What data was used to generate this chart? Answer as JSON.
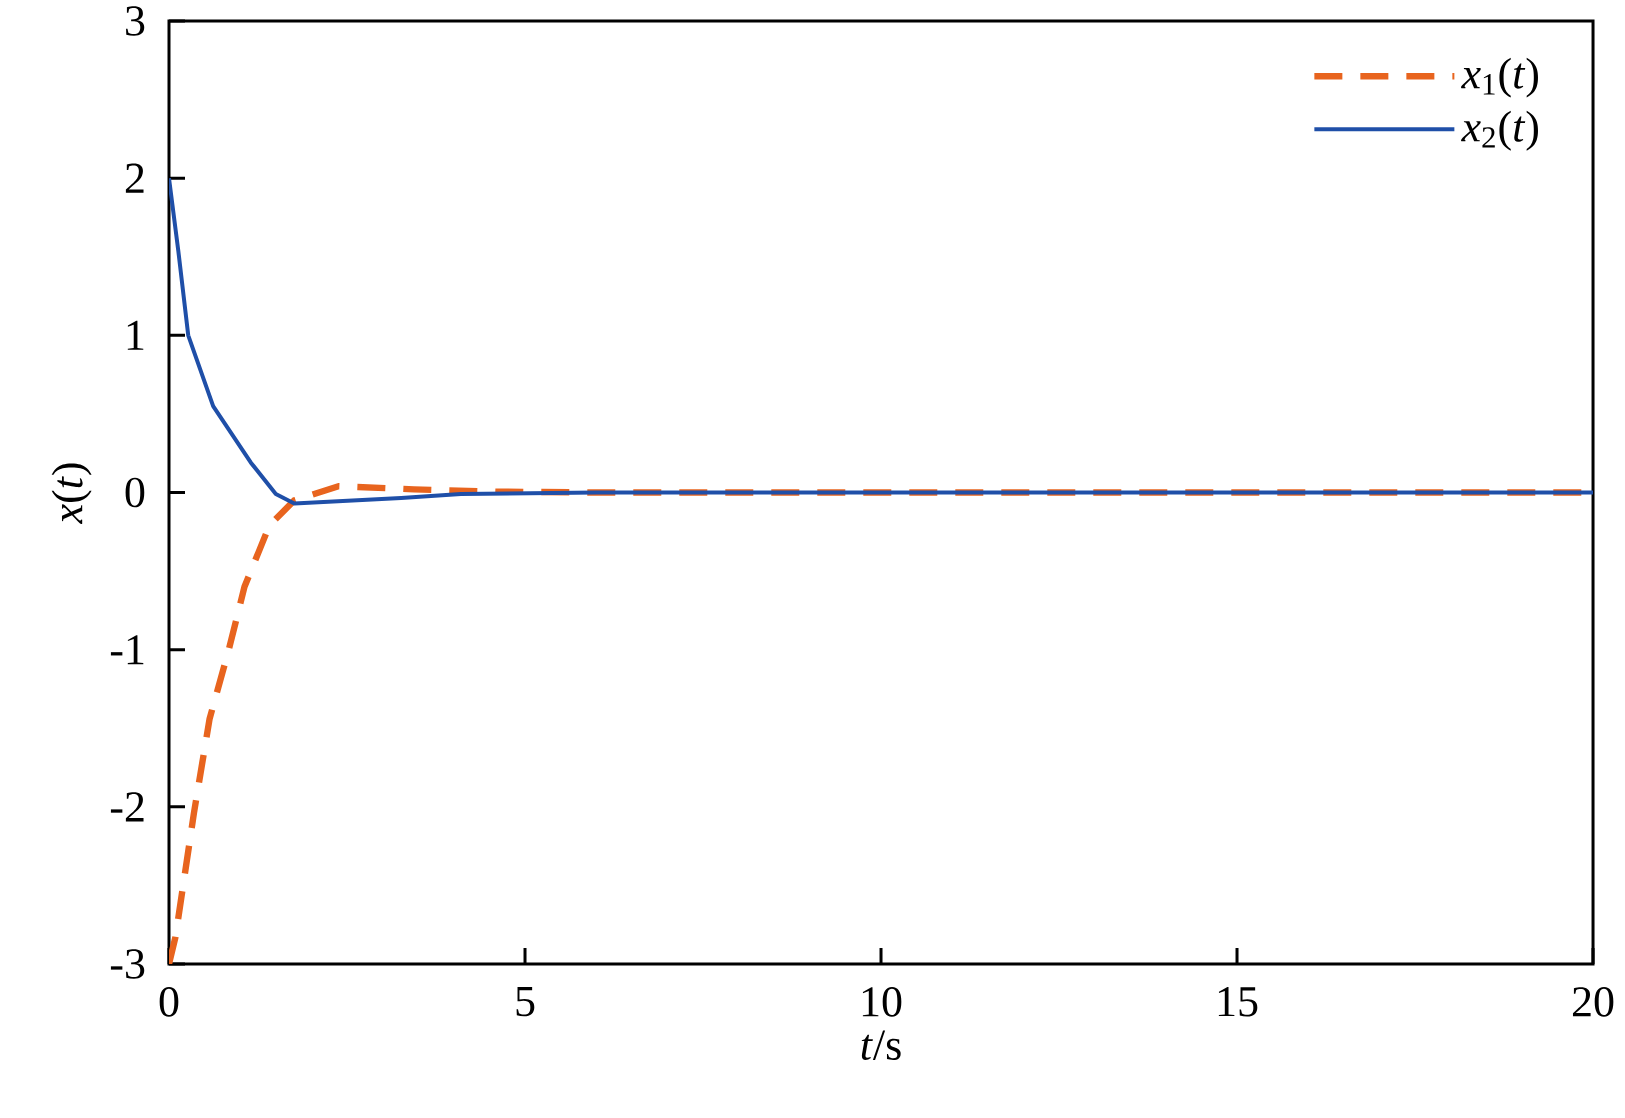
{
  "chart_data": {
    "type": "line",
    "xlabel": "*t*/s",
    "ylabel": "*x*(*t*)",
    "xlim": [
      0,
      20
    ],
    "ylim": [
      -3,
      3
    ],
    "xticks": [
      0,
      5,
      10,
      15,
      20
    ],
    "yticks": [
      -3,
      -2,
      -1,
      0,
      1,
      2,
      3
    ],
    "grid": false,
    "legend": "top right",
    "series": [
      {
        "name": "*x*$_{1}$(*t*)",
        "color": "#e8641e",
        "line_style": "dashed",
        "x": [
          0,
          0.09,
          0.35,
          0.57,
          0.84,
          1.06,
          1.41,
          1.76,
          2.38,
          3.44,
          4.6,
          6,
          20
        ],
        "values": [
          -3,
          -2.83,
          -2.04,
          -1.44,
          -1.0,
          -0.6,
          -0.21,
          -0.05,
          0.04,
          0.02,
          0.005,
          0,
          0
        ]
      },
      {
        "name": "*x*$_{2}$(*t*)",
        "color": "#1f4fa8",
        "line_style": "solid",
        "x": [
          0,
          0.13,
          0.27,
          0.62,
          1.15,
          1.5,
          1.76,
          3.26,
          4.1,
          6,
          20
        ],
        "values": [
          2,
          1.54,
          1.0,
          0.55,
          0.19,
          -0.01,
          -0.07,
          -0.035,
          -0.01,
          0,
          0
        ]
      }
    ]
  }
}
